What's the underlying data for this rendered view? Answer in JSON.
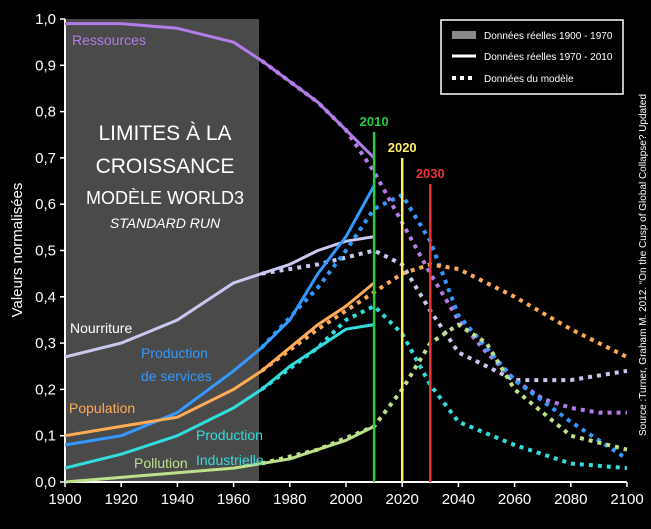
{
  "chart_data": {
    "type": "line",
    "ylabel": "Valeurs normalisées",
    "xlim": [
      1900,
      2100
    ],
    "ylim": [
      0,
      1
    ],
    "x_ticks": [
      "1900",
      "1920",
      "1940",
      "1960",
      "1980",
      "2000",
      "2020",
      "2040",
      "2060",
      "2080",
      "2100"
    ],
    "y_ticks": [
      "0,0",
      "0,1",
      "0,2",
      "0,3",
      "0,4",
      "0,5",
      "0,6",
      "0,7",
      "0,8",
      "0,9",
      "1,0"
    ],
    "title_lines": [
      "LIMITES À LA",
      "CROISSANCE",
      "MODÈLE WORLD3",
      "STANDARD RUN"
    ],
    "source": "Source :Turner, Graham M. 2012. “On the Cusp of Global Collapse? Updated",
    "shaded_region": {
      "x": [
        1900,
        1970
      ]
    },
    "legend": {
      "position": "top-right",
      "entries": [
        "Données réelles 1900 - 1970",
        "Données réelles 1970 - 2010",
        "Données du modèle"
      ]
    },
    "markers": [
      {
        "year": 2010,
        "label": "2010",
        "color": "#22cc44"
      },
      {
        "year": 2020,
        "label": "2020",
        "color": "#ffee66"
      },
      {
        "year": 2030,
        "label": "2030",
        "color": "#ee3333"
      }
    ],
    "series": [
      {
        "name": "Ressources",
        "color": "#b47ce8",
        "observed": [
          [
            1900,
            0.99
          ],
          [
            1920,
            0.99
          ],
          [
            1940,
            0.98
          ],
          [
            1960,
            0.95
          ],
          [
            1970,
            0.91
          ],
          [
            1990,
            0.82
          ],
          [
            2000,
            0.76
          ],
          [
            2010,
            0.7
          ]
        ],
        "model": [
          [
            1970,
            0.91
          ],
          [
            1990,
            0.82
          ],
          [
            2000,
            0.76
          ],
          [
            2010,
            0.67
          ],
          [
            2020,
            0.56
          ],
          [
            2030,
            0.45
          ],
          [
            2040,
            0.35
          ],
          [
            2050,
            0.28
          ],
          [
            2060,
            0.22
          ],
          [
            2070,
            0.18
          ],
          [
            2080,
            0.16
          ],
          [
            2090,
            0.15
          ],
          [
            2100,
            0.15
          ]
        ]
      },
      {
        "name": "Nourriture",
        "color": "#c8c8f0",
        "observed": [
          [
            1900,
            0.27
          ],
          [
            1920,
            0.3
          ],
          [
            1940,
            0.35
          ],
          [
            1960,
            0.43
          ],
          [
            1970,
            0.45
          ],
          [
            1980,
            0.47
          ],
          [
            1990,
            0.5
          ],
          [
            2000,
            0.52
          ],
          [
            2010,
            0.53
          ]
        ],
        "model": [
          [
            1970,
            0.45
          ],
          [
            1990,
            0.47
          ],
          [
            2010,
            0.5
          ],
          [
            2020,
            0.47
          ],
          [
            2030,
            0.37
          ],
          [
            2040,
            0.28
          ],
          [
            2060,
            0.22
          ],
          [
            2080,
            0.22
          ],
          [
            2100,
            0.24
          ]
        ]
      },
      {
        "name": "Production de services",
        "color": "#3399ff",
        "observed": [
          [
            1900,
            0.08
          ],
          [
            1920,
            0.1
          ],
          [
            1940,
            0.15
          ],
          [
            1960,
            0.24
          ],
          [
            1970,
            0.29
          ],
          [
            1980,
            0.35
          ],
          [
            1990,
            0.45
          ],
          [
            2000,
            0.53
          ],
          [
            2010,
            0.64
          ]
        ],
        "model": [
          [
            1970,
            0.29
          ],
          [
            1990,
            0.42
          ],
          [
            2000,
            0.5
          ],
          [
            2010,
            0.59
          ],
          [
            2020,
            0.62
          ],
          [
            2030,
            0.52
          ],
          [
            2040,
            0.36
          ],
          [
            2060,
            0.22
          ],
          [
            2080,
            0.13
          ],
          [
            2100,
            0.05
          ]
        ]
      },
      {
        "name": "Population",
        "color": "#ffaa55",
        "observed": [
          [
            1900,
            0.1
          ],
          [
            1920,
            0.12
          ],
          [
            1940,
            0.14
          ],
          [
            1960,
            0.2
          ],
          [
            1970,
            0.24
          ],
          [
            1980,
            0.29
          ],
          [
            1990,
            0.34
          ],
          [
            2000,
            0.38
          ],
          [
            2010,
            0.43
          ]
        ],
        "model": [
          [
            1970,
            0.24
          ],
          [
            1990,
            0.33
          ],
          [
            2010,
            0.41
          ],
          [
            2020,
            0.45
          ],
          [
            2030,
            0.47
          ],
          [
            2040,
            0.46
          ],
          [
            2060,
            0.4
          ],
          [
            2080,
            0.33
          ],
          [
            2100,
            0.27
          ]
        ]
      },
      {
        "name": "Production Industrielle",
        "color": "#33dddd",
        "observed": [
          [
            1900,
            0.03
          ],
          [
            1920,
            0.06
          ],
          [
            1940,
            0.1
          ],
          [
            1960,
            0.16
          ],
          [
            1970,
            0.2
          ],
          [
            1980,
            0.25
          ],
          [
            1990,
            0.29
          ],
          [
            2000,
            0.33
          ],
          [
            2010,
            0.34
          ]
        ],
        "model": [
          [
            1970,
            0.2
          ],
          [
            1990,
            0.29
          ],
          [
            2000,
            0.35
          ],
          [
            2010,
            0.38
          ],
          [
            2020,
            0.32
          ],
          [
            2030,
            0.21
          ],
          [
            2040,
            0.13
          ],
          [
            2060,
            0.08
          ],
          [
            2080,
            0.04
          ],
          [
            2100,
            0.03
          ]
        ]
      },
      {
        "name": "Pollution",
        "color": "#bde08a",
        "observed": [
          [
            1900,
            0.0
          ],
          [
            1920,
            0.01
          ],
          [
            1940,
            0.02
          ],
          [
            1960,
            0.03
          ],
          [
            1970,
            0.04
          ],
          [
            1980,
            0.05
          ],
          [
            1990,
            0.07
          ],
          [
            2000,
            0.09
          ],
          [
            2010,
            0.12
          ]
        ],
        "model": [
          [
            1970,
            0.04
          ],
          [
            1990,
            0.07
          ],
          [
            2010,
            0.12
          ],
          [
            2020,
            0.2
          ],
          [
            2030,
            0.3
          ],
          [
            2040,
            0.34
          ],
          [
            2050,
            0.3
          ],
          [
            2060,
            0.2
          ],
          [
            2080,
            0.1
          ],
          [
            2100,
            0.07
          ]
        ]
      }
    ],
    "series_labels": [
      {
        "text": "Ressources",
        "color": "#b47ce8"
      },
      {
        "text": "Nourriture",
        "color": "#ffffff"
      },
      {
        "text": "Production",
        "color": "#3399ff"
      },
      {
        "text": "de services",
        "color": "#3399ff"
      },
      {
        "text": "Population",
        "color": "#ffaa55"
      },
      {
        "text": "Production",
        "color": "#33dddd"
      },
      {
        "text": "Industrielle",
        "color": "#33dddd"
      },
      {
        "text": "Pollution",
        "color": "#bde08a"
      }
    ]
  }
}
